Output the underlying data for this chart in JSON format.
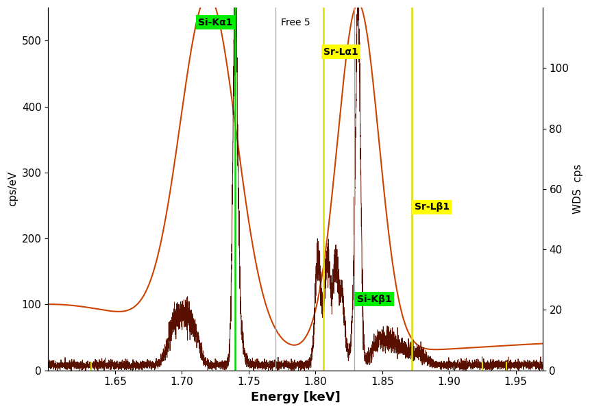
{
  "xlim": [
    1.6,
    1.97
  ],
  "ylim_left": [
    0,
    550
  ],
  "ylim_right": [
    0,
    120
  ],
  "xlabel": "Energy [keV]",
  "ylabel_left": "cps/eV",
  "ylabel_right": "WDS  cps",
  "xticks": [
    1.65,
    1.7,
    1.75,
    1.8,
    1.85,
    1.9,
    1.95
  ],
  "yticks_left": [
    0,
    100,
    200,
    300,
    400,
    500
  ],
  "yticks_right": [
    0,
    20,
    40,
    60,
    80,
    100
  ],
  "bg_color": "#ffffff",
  "eds_color": "#cc4400",
  "wds_color": "#5a1000",
  "line_Si_Ka1_x": 1.74,
  "line_Sr_La1_x": 1.806,
  "line_Si_Kb1_x": 1.829,
  "line_Sr_Lb1_x": 1.872,
  "line_Free5_x": 1.77,
  "small_yellow_lines": [
    1.632,
    1.925,
    1.943
  ],
  "green_color": "#00dd00",
  "yellow_color": "#dddd00",
  "gray_color": "#aaaaaa"
}
